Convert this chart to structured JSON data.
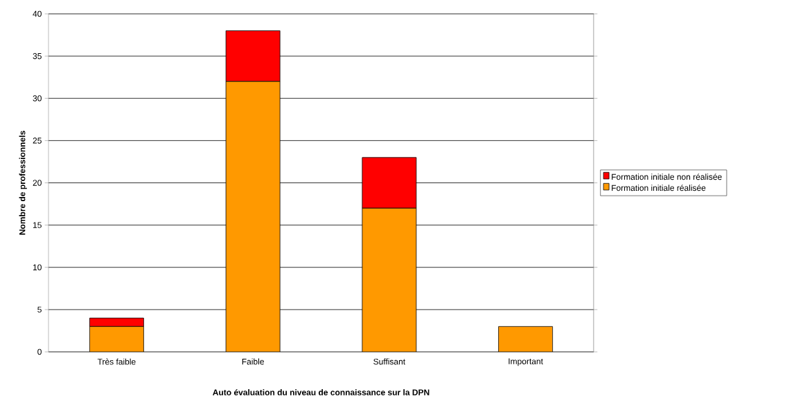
{
  "chart_data": {
    "type": "bar",
    "stacked": true,
    "xlabel": "Auto évaluation du niveau de connaissance sur la DPN",
    "ylabel": "Nombre de professionnels",
    "categories": [
      "Très faible",
      "Faible",
      "Suffisant",
      "Important"
    ],
    "series": [
      {
        "name": "Formation initiale réalisée",
        "color": "#ff9900",
        "values": [
          3,
          32,
          17,
          3
        ]
      },
      {
        "name": "Formation initiale non réalisée",
        "color": "#ff0000",
        "values": [
          1,
          6,
          6,
          0
        ]
      }
    ],
    "ylim": [
      0,
      40
    ],
    "yticks": [
      0,
      5,
      10,
      15,
      20,
      25,
      30,
      35,
      40
    ],
    "grid": "y",
    "legend": "right"
  }
}
